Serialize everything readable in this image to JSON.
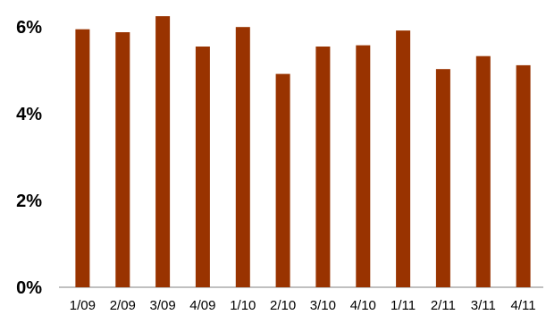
{
  "chart_data": {
    "type": "bar",
    "categories": [
      "1/09",
      "2/09",
      "3/09",
      "4/09",
      "1/10",
      "2/10",
      "3/10",
      "4/10",
      "1/11",
      "2/11",
      "3/11",
      "4/11"
    ],
    "values": [
      5.95,
      5.88,
      6.25,
      5.55,
      6.0,
      4.92,
      5.55,
      5.58,
      5.92,
      5.03,
      5.33,
      5.12
    ],
    "ylim": [
      0,
      6.5
    ],
    "yticks": [
      0,
      2,
      4,
      6
    ],
    "ytick_labels": [
      "0%",
      "2%",
      "4%",
      "6%"
    ],
    "title": "",
    "xlabel": "",
    "ylabel": "",
    "grid": false,
    "legend": "none",
    "bar_color": "#993300",
    "axis_color": "#808080"
  }
}
